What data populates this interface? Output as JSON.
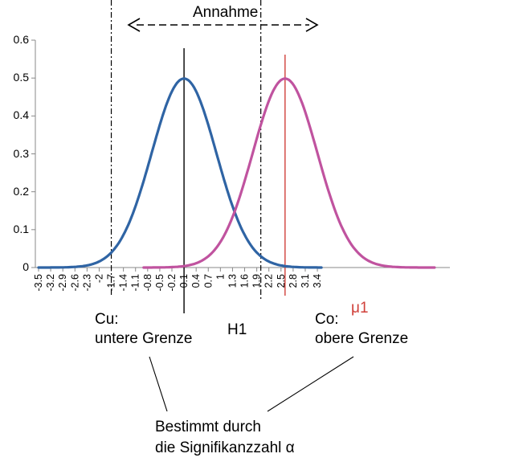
{
  "chart_data": {
    "type": "line",
    "title": "",
    "xlabel": "",
    "ylabel": "",
    "ylim": [
      0,
      0.6
    ],
    "yticks": [
      "0",
      "0.1",
      "0.2",
      "0.3",
      "0.4",
      "0.5",
      "0.6"
    ],
    "xticks": [
      "-3.5",
      "-3.2",
      "-2.9",
      "-2.6",
      "-2.3",
      "-2",
      "-1.7",
      "-1.4",
      "-1.1",
      "-0.8",
      "-0.5",
      "-0.2",
      "0.1",
      "0.4",
      "0.7",
      "1",
      "1.3",
      "1.6",
      "1.9",
      "2.2",
      "2.5",
      "2.8",
      "3.1",
      "3.4"
    ],
    "xlim": [
      -3.5,
      4.1
    ],
    "grid": false,
    "series": [
      {
        "name": "",
        "color": "#2f64a4",
        "mean": 0.1,
        "sd": 0.8,
        "x_range": [
          -3.5,
          3.5
        ]
      },
      {
        "name": "",
        "color": "#c0539f",
        "mean": 2.6,
        "sd": 0.8,
        "x_range": [
          -0.9,
          6.3
        ]
      }
    ],
    "vertical_lines": [
      {
        "x": -1.7,
        "style": "dash-dot",
        "color": "#000000"
      },
      {
        "x": 0.1,
        "style": "solid",
        "color": "#000000"
      },
      {
        "x": 2.0,
        "style": "dash-dot",
        "color": "#000000"
      },
      {
        "x": 2.6,
        "style": "solid",
        "color": "#d0403a"
      }
    ]
  },
  "labels": {
    "annahme": "Annahme",
    "cu": "Cu:",
    "cu_sub": "untere Grenze",
    "h1": "H1",
    "co": "Co:",
    "mu1": "μ1",
    "co_sub": "obere Grenze",
    "bestimmt_line1": "Bestimmt durch",
    "bestimmt_line2": "die Signifikanzzahl α"
  }
}
